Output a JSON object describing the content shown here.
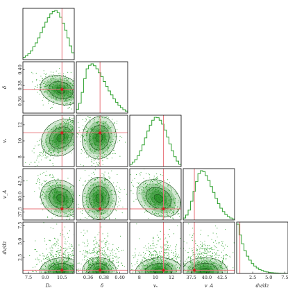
{
  "chart_data": {
    "type": "corner",
    "colors": {
      "hist": "#2ca02c",
      "density": "#1e8a1e",
      "scatter": "#2aa02a",
      "truth_line": "#e8737a",
      "truth_point": "#cc2222"
    },
    "params": [
      {
        "key": "D0",
        "label": "D₀",
        "range": [
          7.0,
          11.6
        ],
        "ticks": [
          7.5,
          9.0,
          10.5
        ],
        "tick_labels": [
          "7.5",
          "9.0",
          "10.5"
        ]
      },
      {
        "key": "delta",
        "label": "δ",
        "range": [
          0.345,
          0.41
        ],
        "ticks": [
          0.36,
          0.38,
          0.4
        ],
        "tick_labels": [
          "0.36",
          "0.38",
          "0.40"
        ]
      },
      {
        "key": "vs",
        "label": "vₛ",
        "range": [
          6.8,
          13.2
        ],
        "ticks": [
          8,
          10,
          12
        ],
        "tick_labels": [
          "8",
          "10",
          "12"
        ]
      },
      {
        "key": "vA",
        "label": "v_A",
        "range": [
          36.2,
          44.5
        ],
        "ticks": [
          37.5,
          40.0,
          42.5
        ],
        "tick_labels": [
          "37.5",
          "40.0",
          "42.5"
        ]
      },
      {
        "key": "dvdz",
        "label": "dv/dz",
        "range": [
          0.0,
          8.0
        ],
        "ticks": [
          2.5,
          5.0,
          7.5
        ],
        "tick_labels": [
          "2.5",
          "5.0",
          "7.5"
        ]
      }
    ],
    "truth": {
      "D0": 10.5,
      "delta": 0.375,
      "vs": 11.0,
      "vA": 38.0,
      "dvdz": 0.5
    },
    "posterior_mean": {
      "D0": 10.4,
      "delta": 0.374,
      "vs": 10.4,
      "vA": 39.7,
      "dvdz": 0.9
    },
    "posterior_sd": {
      "D0": 0.75,
      "delta": 0.0085,
      "vs": 1.15,
      "vA": 1.45,
      "dvdz": 1.5
    },
    "hist_shapes": [
      [
        0.05,
        0.08,
        0.12,
        0.18,
        0.26,
        0.34,
        0.44,
        0.55,
        0.66,
        0.76,
        0.85,
        0.93,
        0.98,
        1.0,
        0.95,
        0.86,
        0.74,
        0.6,
        0.44,
        0.28,
        0.14
      ],
      [
        0.08,
        0.2,
        0.42,
        0.7,
        0.9,
        0.97,
        1.0,
        0.96,
        0.9,
        0.82,
        0.74,
        0.64,
        0.54,
        0.45,
        0.37,
        0.29,
        0.22,
        0.16,
        0.11,
        0.07,
        0.04
      ],
      [
        0.05,
        0.09,
        0.14,
        0.22,
        0.32,
        0.44,
        0.58,
        0.72,
        0.84,
        0.94,
        1.0,
        0.99,
        0.94,
        0.86,
        0.74,
        0.6,
        0.46,
        0.32,
        0.2,
        0.11,
        0.05
      ],
      [
        0.04,
        0.1,
        0.2,
        0.38,
        0.58,
        0.78,
        0.94,
        1.0,
        0.98,
        0.9,
        0.8,
        0.68,
        0.56,
        0.44,
        0.33,
        0.24,
        0.17,
        0.11,
        0.07,
        0.04,
        0.02
      ],
      [
        1.0,
        0.78,
        0.6,
        0.46,
        0.35,
        0.27,
        0.2,
        0.15,
        0.11,
        0.08,
        0.06,
        0.04,
        0.03,
        0.02,
        0.015,
        0.01,
        0.008,
        0.006,
        0.004,
        0.003,
        0.002
      ]
    ],
    "correlations": {
      "1-0": -0.35,
      "2-0": 0.7,
      "2-1": -0.1,
      "3-0": -0.55,
      "3-1": 0.05,
      "3-2": -0.6,
      "4-0": 0.1,
      "4-1": 0.05,
      "4-2": 0.1,
      "4-3": 0.05
    },
    "grid": false
  }
}
